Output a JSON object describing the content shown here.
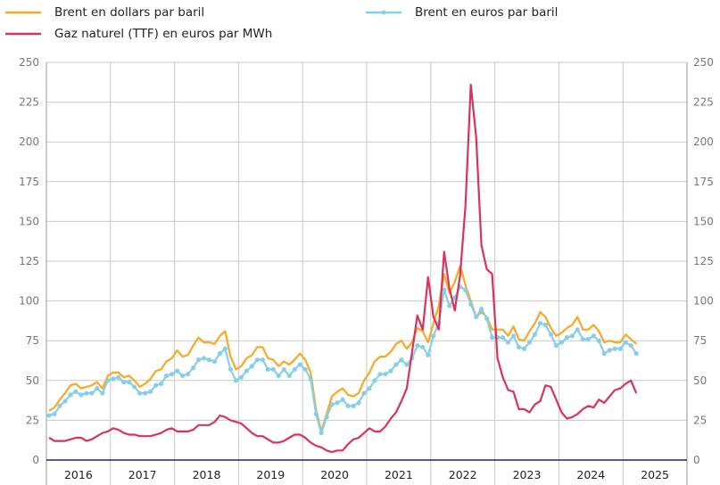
{
  "chart_data": {
    "type": "line",
    "title": "",
    "xlabel": "",
    "ylabel": "",
    "ylim": [
      0,
      250
    ],
    "y_ticks": [
      "0",
      "25",
      "50",
      "75",
      "100",
      "125",
      "150",
      "175",
      "200",
      "225",
      "250"
    ],
    "x_tick_labels": [
      "2016",
      "2017",
      "2018",
      "2019",
      "2020",
      "2021",
      "2022",
      "2023",
      "2024",
      "2025"
    ],
    "x_start": "2016-01",
    "frequency": "monthly",
    "grid": true,
    "legend_position": "top",
    "series": [
      {
        "name": "Brent en dollars par baril",
        "color": "#f9a825",
        "marker": false,
        "values": [
          31,
          33,
          38,
          42,
          47,
          48,
          45,
          46,
          47,
          49,
          45,
          53,
          55,
          55,
          52,
          53,
          50,
          46,
          48,
          51,
          56,
          57,
          62,
          64,
          69,
          65,
          66,
          72,
          77,
          74,
          74,
          73,
          78,
          81,
          65,
          57,
          59,
          64,
          66,
          71,
          71,
          64,
          63,
          59,
          62,
          60,
          63,
          67,
          63,
          55,
          32,
          18,
          29,
          40,
          43,
          45,
          41,
          40,
          42,
          50,
          55,
          62,
          65,
          65,
          68,
          73,
          75,
          70,
          74,
          83,
          81,
          74,
          86,
          97,
          117,
          105,
          112,
          122,
          110,
          100,
          90,
          93,
          90,
          82,
          82,
          82,
          78,
          84,
          76,
          75,
          81,
          86,
          93,
          90,
          83,
          78,
          80,
          83,
          85,
          90,
          82,
          82,
          85,
          81,
          74,
          75,
          74,
          74,
          79,
          76,
          73
        ],
        "values_note": "approximate monthly values read from chart"
      },
      {
        "name": "Brent en euros par baril",
        "color": "#87ceeb",
        "marker": true,
        "values": [
          28,
          29,
          34,
          37,
          41,
          43,
          41,
          42,
          42,
          45,
          42,
          50,
          51,
          52,
          49,
          49,
          46,
          42,
          42,
          43,
          47,
          48,
          53,
          54,
          56,
          53,
          54,
          58,
          63,
          64,
          63,
          62,
          67,
          70,
          57,
          50,
          52,
          56,
          59,
          63,
          63,
          57,
          57,
          53,
          57,
          53,
          57,
          60,
          57,
          51,
          29,
          17,
          27,
          35,
          36,
          38,
          34,
          34,
          36,
          42,
          45,
          50,
          54,
          54,
          56,
          60,
          63,
          60,
          64,
          72,
          71,
          66,
          78,
          86,
          107,
          97,
          102,
          109,
          107,
          98,
          90,
          95,
          89,
          77,
          77,
          77,
          74,
          78,
          71,
          70,
          74,
          79,
          86,
          85,
          79,
          72,
          74,
          77,
          78,
          82,
          76,
          76,
          78,
          75,
          67,
          69,
          70,
          70,
          74,
          72,
          67
        ]
      },
      {
        "name": "Gaz naturel (TTF) en euros par MWh",
        "color": "#d9335d",
        "marker": false,
        "values": [
          14,
          12,
          12,
          12,
          13,
          14,
          14,
          12,
          13,
          15,
          17,
          18,
          20,
          19,
          17,
          16,
          16,
          15,
          15,
          15,
          16,
          17,
          19,
          20,
          18,
          18,
          18,
          19,
          22,
          22,
          22,
          24,
          28,
          27,
          25,
          24,
          23,
          20,
          17,
          15,
          15,
          13,
          11,
          11,
          12,
          14,
          16,
          16,
          14,
          11,
          9,
          8,
          6,
          5,
          6,
          6,
          10,
          13,
          14,
          17,
          20,
          18,
          18,
          21,
          26,
          30,
          37,
          45,
          68,
          91,
          82,
          115,
          90,
          82,
          131,
          108,
          94,
          116,
          160,
          236,
          203,
          135,
          120,
          117,
          64,
          52,
          44,
          43,
          32,
          32,
          30,
          35,
          37,
          47,
          46,
          38,
          30,
          26,
          27,
          29,
          32,
          34,
          33,
          38,
          36,
          40,
          44,
          45,
          48,
          50,
          42
        ]
      }
    ]
  },
  "legend": [
    {
      "label": "Brent en dollars par baril",
      "icon": "line-icon"
    },
    {
      "label": "Brent en euros par baril",
      "icon": "line-marker-icon"
    },
    {
      "label": "Gaz naturel (TTF) en euros par MWh",
      "icon": "line-icon"
    }
  ]
}
